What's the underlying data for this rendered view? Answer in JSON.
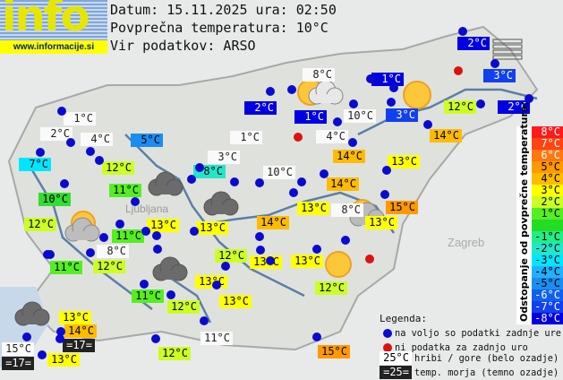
{
  "header": {
    "date_line": "Datum: 15.11.2025 ura: 02:50",
    "avg_line": "Povprečna temperatura: 10°C",
    "source_line": "Vir podatkov: ARSO"
  },
  "logo": {
    "text": "info",
    "url": "www.informacije.si"
  },
  "stations": [
    {
      "t": "2°C",
      "c": "#0000e0"
    },
    {
      "t": "8°C",
      "c": "hill"
    },
    {
      "t": "1°C",
      "c": "#0000e0"
    },
    {
      "t": "2°C",
      "c": "#0000e0"
    },
    {
      "t": "1°C",
      "c": "#0000e0"
    },
    {
      "t": "10°C",
      "c": "hill"
    },
    {
      "t": "3°C",
      "c": "#1040f0"
    },
    {
      "t": "3°C",
      "c": "#1040f0"
    },
    {
      "t": "12°C",
      "c": "#ccff22"
    },
    {
      "t": "2°C",
      "c": "#0000e0"
    },
    {
      "t": "1°C",
      "c": "hill"
    },
    {
      "t": "2°C",
      "c": "hill"
    },
    {
      "t": "4°C",
      "c": "hill"
    },
    {
      "t": "5°C",
      "c": "#1a8ef0"
    },
    {
      "t": "1°C",
      "c": "hill"
    },
    {
      "t": "4°C",
      "c": "hill"
    },
    {
      "t": "14°C",
      "c": "#ffbb00"
    },
    {
      "t": "7°C",
      "c": "#00e6ff"
    },
    {
      "t": "3°C",
      "c": "hill"
    },
    {
      "t": "14°C",
      "c": "#ffbb00"
    },
    {
      "t": "12°C",
      "c": "#ccff22"
    },
    {
      "t": "8°C",
      "c": "#22e6cc"
    },
    {
      "t": "10°C",
      "c": "hill"
    },
    {
      "t": "13°C",
      "c": "#ffff00"
    },
    {
      "t": "11°C",
      "c": "#55ee22"
    },
    {
      "t": "14°C",
      "c": "#ffbb00"
    },
    {
      "t": "10°C",
      "c": "#33dd33"
    },
    {
      "t": "13°C",
      "c": "#ffff00"
    },
    {
      "t": "8°C",
      "c": "hill"
    },
    {
      "t": "15°C",
      "c": "#ff9900"
    },
    {
      "t": "12°C",
      "c": "#ccff22"
    },
    {
      "t": "13°C",
      "c": "#ffff00"
    },
    {
      "t": "13°C",
      "c": "#ffff00"
    },
    {
      "t": "14°C",
      "c": "#ffbb00"
    },
    {
      "t": "13°C",
      "c": "#ffff00"
    },
    {
      "t": "11°C",
      "c": "#55ee22"
    },
    {
      "t": "8°C",
      "c": "hill"
    },
    {
      "t": "12°C",
      "c": "#ccff22"
    },
    {
      "t": "13°C",
      "c": "#ffff00"
    },
    {
      "t": "13°C",
      "c": "#ffff00"
    },
    {
      "t": "11°C",
      "c": "#55ee22"
    },
    {
      "t": "12°C",
      "c": "#ccff22"
    },
    {
      "t": "12°C",
      "c": "#ccff22"
    },
    {
      "t": "13°C",
      "c": "#ffff00"
    },
    {
      "t": "11°C",
      "c": "#55ee22"
    },
    {
      "t": "12°C",
      "c": "#ccff22"
    },
    {
      "t": "13°C",
      "c": "#ffff00"
    },
    {
      "t": "13°C",
      "c": "#ffff00"
    },
    {
      "t": "14°C",
      "c": "#ffbb00"
    },
    {
      "t": "=17=",
      "c": "sea"
    },
    {
      "t": "15°C",
      "c": "hill"
    },
    {
      "t": "=17=",
      "c": "sea"
    },
    {
      "t": "13°C",
      "c": "#ffff00"
    },
    {
      "t": "12°C",
      "c": "#ccff22"
    },
    {
      "t": "11°C",
      "c": "hill"
    },
    {
      "t": "15°C",
      "c": "#ff9900"
    }
  ],
  "scale": {
    "title": "Odstopanje od povprečne temperature:",
    "steps": [
      {
        "v": "8°C",
        "c": "#ff1a1a",
        "f": "#fff"
      },
      {
        "v": "7°C",
        "c": "#ff4411",
        "f": "#fff"
      },
      {
        "v": "6°C",
        "c": "#ff7711",
        "f": "#fff"
      },
      {
        "v": "5°C",
        "c": "#ff9900",
        "f": "#000"
      },
      {
        "v": "4°C",
        "c": "#ffbb00",
        "f": "#000"
      },
      {
        "v": "3°C",
        "c": "#ffff00",
        "f": "#000"
      },
      {
        "v": "2°C",
        "c": "#ccff22",
        "f": "#000"
      },
      {
        "v": "1°C",
        "c": "#55ee22",
        "f": "#000"
      },
      {
        "v": "",
        "c": "#22dd22",
        "f": "#000"
      },
      {
        "v": "-1°C",
        "c": "#22ee88",
        "f": "#000"
      },
      {
        "v": "-2°C",
        "c": "#22e6cc",
        "f": "#000"
      },
      {
        "v": "-3°C",
        "c": "#00e6ff",
        "f": "#000"
      },
      {
        "v": "-4°C",
        "c": "#22b0ff",
        "f": "#000"
      },
      {
        "v": "-5°C",
        "c": "#1a8ef0",
        "f": "#000"
      },
      {
        "v": "-6°C",
        "c": "#1060f0",
        "f": "#fff"
      },
      {
        "v": "-7°C",
        "c": "#1040f0",
        "f": "#fff"
      },
      {
        "v": "-8°C",
        "c": "#0000e0",
        "f": "#fff"
      }
    ]
  },
  "legend": {
    "title": "Legenda:",
    "blue": "na voljo so podatki zadnje ure",
    "red": "ni podatka za zadnjo uro",
    "hill_sample": "25°C",
    "hill": "hribi / gore (belo ozadje)",
    "sea_sample": "=25=",
    "sea": "temp. morja (temno ozadje)"
  },
  "map_labels": {
    "zagreb": "Zagreb",
    "ljubljana": "Ljubljana"
  }
}
